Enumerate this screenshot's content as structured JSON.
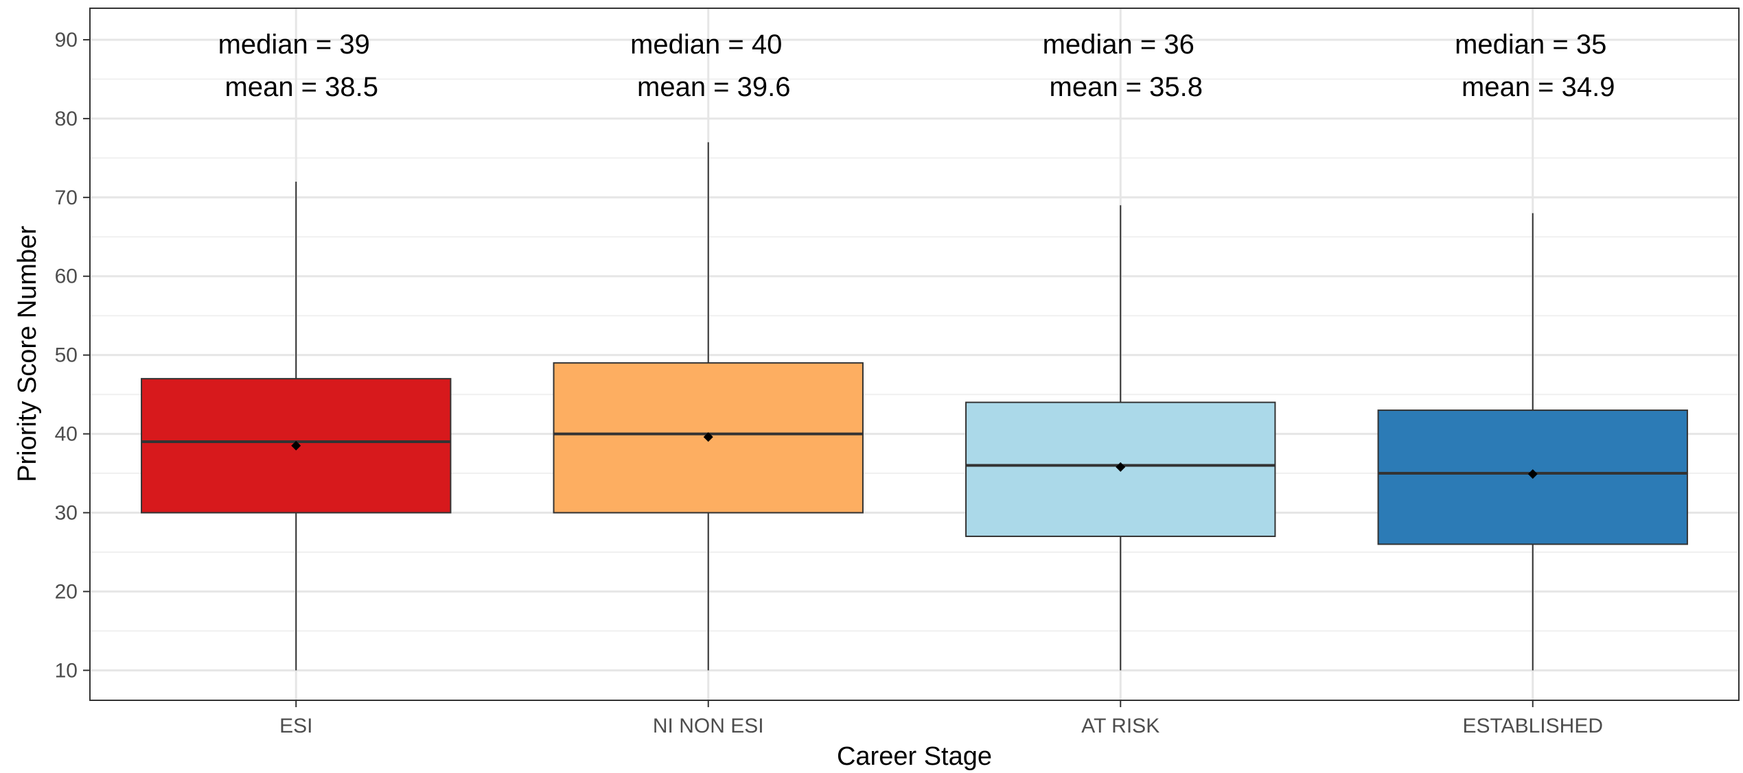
{
  "chart_data": {
    "type": "boxplot",
    "title": "",
    "xlabel": "Career Stage",
    "ylabel": "Priority Score Number",
    "ylim": [
      6.2,
      94
    ],
    "yticks": [
      10,
      20,
      30,
      40,
      50,
      60,
      70,
      80,
      90
    ],
    "grid": true,
    "categories": [
      "ESI",
      "NI NON ESI",
      "AT RISK",
      "ESTABLISHED"
    ],
    "boxes": [
      {
        "category": "ESI",
        "color": "#d7191c",
        "whisker_low": 10,
        "q1": 30,
        "median": 39,
        "q3": 47,
        "whisker_high": 72,
        "mean": 38.5,
        "median_label": "median = 39",
        "mean_label": "mean = 38.5"
      },
      {
        "category": "NI NON ESI",
        "color": "#fdae61",
        "whisker_low": 10,
        "q1": 30,
        "median": 40,
        "q3": 49,
        "whisker_high": 77,
        "mean": 39.6,
        "median_label": "median = 40",
        "mean_label": "mean = 39.6"
      },
      {
        "category": "AT RISK",
        "color": "#abd9e9",
        "whisker_low": 10,
        "q1": 27,
        "median": 36,
        "q3": 44,
        "whisker_high": 69,
        "mean": 35.8,
        "median_label": "median = 36",
        "mean_label": "mean = 35.8"
      },
      {
        "category": "ESTABLISHED",
        "color": "#2c7bb6",
        "whisker_low": 10,
        "q1": 26,
        "median": 35,
        "q3": 43,
        "whisker_high": 68,
        "mean": 34.9,
        "median_label": "median = 35",
        "mean_label": "mean = 34.9"
      }
    ]
  }
}
